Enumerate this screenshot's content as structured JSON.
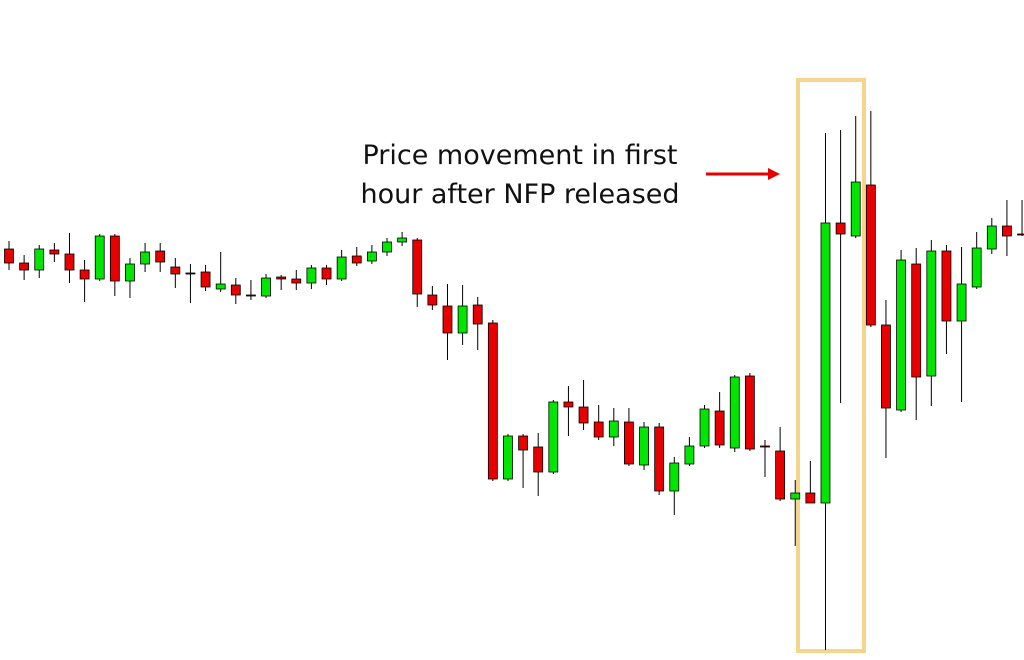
{
  "chart_data": {
    "type": "candlestick",
    "annotation": [
      "Price movement in first",
      "hour after NFP released"
    ],
    "up_color": "#00e600",
    "down_color": "#e60000",
    "highlight_color": "#f5d58c",
    "arrow_color": "#e60000",
    "ylim": [
      0,
      660
    ],
    "open": [
      411,
      397,
      390,
      410,
      406,
      390,
      381,
      424,
      379,
      396,
      409,
      393,
      387,
      388,
      371,
      375,
      365,
      364,
      383,
      381,
      377,
      392,
      381,
      404,
      399,
      408,
      418,
      420,
      365,
      354,
      327,
      355,
      337,
      181,
      224,
      213,
      188,
      258,
      253,
      238,
      223,
      238,
      195,
      233,
      169,
      196,
      214,
      249,
      212,
      284,
      214,
      209,
      161,
      167,
      157,
      437,
      424,
      475,
      335,
      250,
      396,
      284,
      409,
      339,
      373,
      411,
      434,
      426,
      424
    ],
    "high": [
      419,
      405,
      415,
      417,
      427,
      400,
      426,
      426,
      402,
      417,
      417,
      402,
      396,
      395,
      408,
      382,
      380,
      386,
      385,
      390,
      395,
      395,
      410,
      413,
      415,
      422,
      428,
      422,
      374,
      376,
      375,
      363,
      340,
      226,
      226,
      227,
      260,
      274,
      280,
      255,
      252,
      252,
      238,
      237,
      203,
      223,
      255,
      268,
      285,
      287,
      220,
      233,
      180,
      199,
      527,
      530,
      544,
      549,
      360,
      410,
      412,
      420,
      415,
      413,
      428,
      442,
      460,
      460,
      438
    ],
    "low": [
      390,
      380,
      382,
      398,
      377,
      358,
      379,
      364,
      362,
      388,
      388,
      372,
      357,
      369,
      368,
      356,
      360,
      362,
      370,
      370,
      371,
      375,
      379,
      394,
      396,
      404,
      414,
      353,
      350,
      300,
      315,
      310,
      179,
      179,
      172,
      164,
      186,
      224,
      230,
      220,
      214,
      194,
      190,
      165,
      145,
      194,
      212,
      212,
      208,
      209,
      183,
      159,
      114,
      157,
      10,
      257,
      422,
      333,
      202,
      248,
      240,
      254,
      306,
      258,
      371,
      406,
      404,
      424,
      347
    ],
    "close": [
      397,
      390,
      411,
      406,
      390,
      381,
      424,
      379,
      396,
      408,
      398,
      386,
      386,
      373,
      376,
      365,
      364,
      382,
      381,
      377,
      392,
      381,
      403,
      397,
      408,
      418,
      422,
      366,
      355,
      327,
      354,
      336,
      181,
      224,
      210,
      188,
      258,
      253,
      237,
      223,
      239,
      196,
      233,
      169,
      197,
      214,
      251,
      215,
      283,
      211,
      213,
      161,
      167,
      157,
      437,
      426,
      478,
      335,
      252,
      400,
      283,
      409,
      339,
      376,
      412,
      434,
      424,
      425,
      349
    ]
  }
}
